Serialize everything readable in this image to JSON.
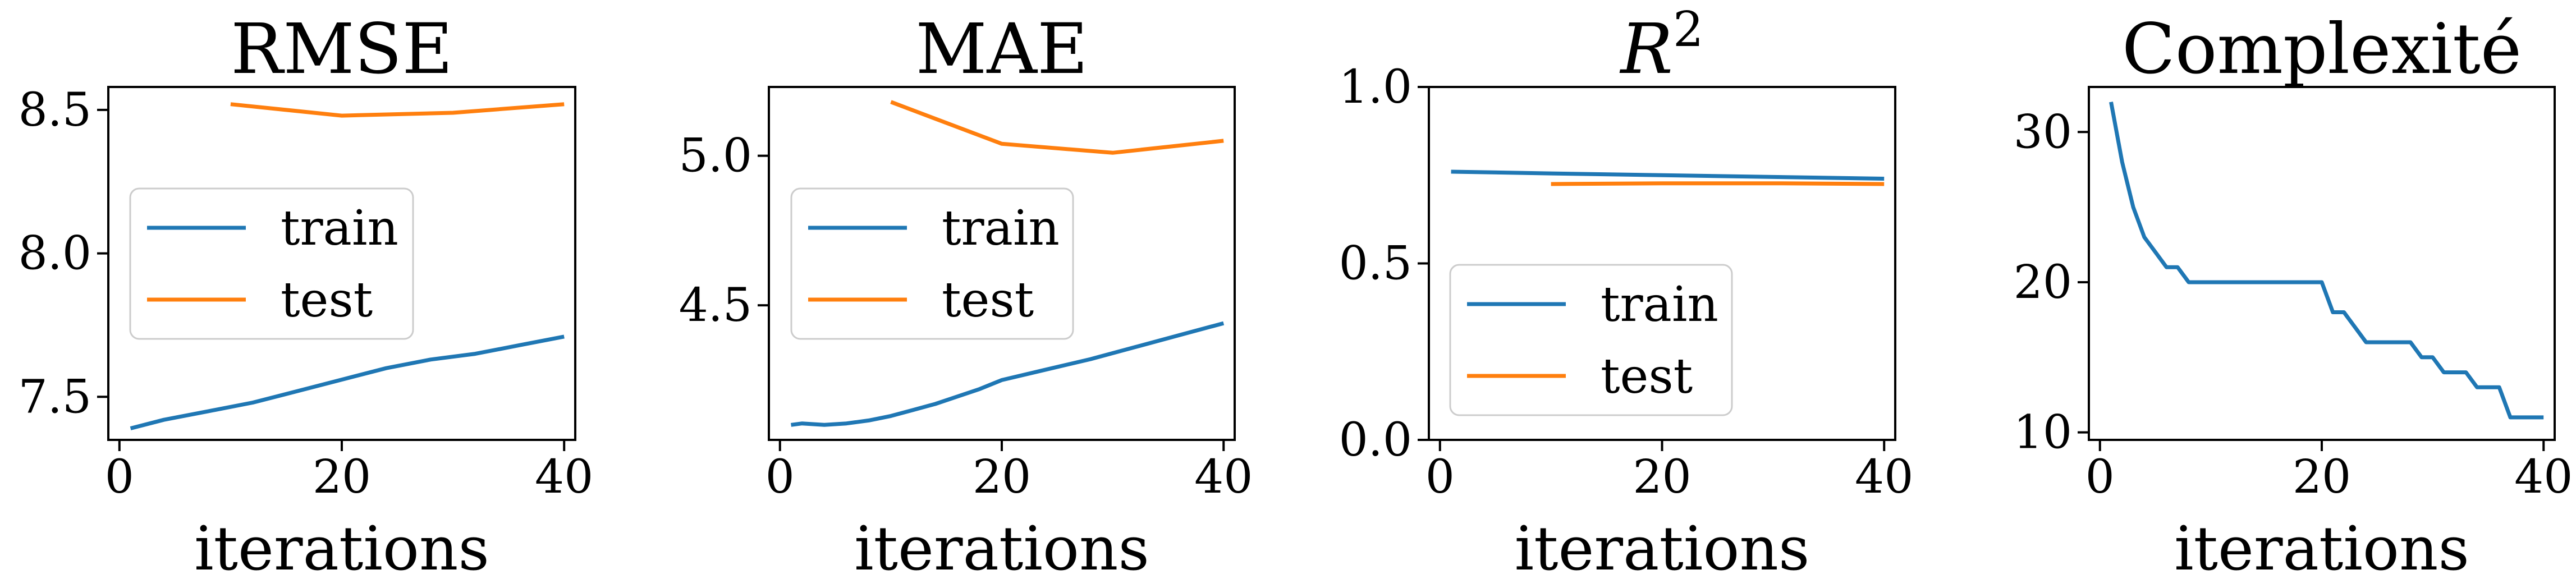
{
  "chart_data": [
    {
      "type": "line",
      "title": "RMSE",
      "xlabel": "iterations",
      "ylabel": "",
      "xlim": [
        -1,
        41
      ],
      "ylim": [
        7.35,
        8.58
      ],
      "xticks": [
        0,
        20,
        40
      ],
      "yticks": [
        7.5,
        8.0,
        8.5
      ],
      "ytick_labels": [
        "7.5",
        "8.0",
        "8.5"
      ],
      "legend": {
        "position": "center-left"
      },
      "colors": {
        "train": "#1f77b4",
        "test": "#ff7f0e"
      },
      "series": [
        {
          "name": "train",
          "color": "#1f77b4",
          "x": [
            1,
            4,
            8,
            12,
            16,
            20,
            24,
            28,
            32,
            36,
            40
          ],
          "y": [
            7.39,
            7.42,
            7.45,
            7.48,
            7.52,
            7.56,
            7.6,
            7.63,
            7.65,
            7.68,
            7.71
          ]
        },
        {
          "name": "test",
          "color": "#ff7f0e",
          "x": [
            10,
            20,
            30,
            40
          ],
          "y": [
            8.52,
            8.48,
            8.49,
            8.52
          ]
        }
      ]
    },
    {
      "type": "line",
      "title": "MAE",
      "xlabel": "iterations",
      "ylabel": "",
      "xlim": [
        -1,
        41
      ],
      "ylim": [
        4.05,
        5.23
      ],
      "xticks": [
        0,
        20,
        40
      ],
      "yticks": [
        4.5,
        5.0
      ],
      "ytick_labels": [
        "4.5",
        "5.0"
      ],
      "legend": {
        "position": "center-left"
      },
      "colors": {
        "train": "#1f77b4",
        "test": "#ff7f0e"
      },
      "series": [
        {
          "name": "train",
          "color": "#1f77b4",
          "x": [
            1,
            2,
            4,
            6,
            8,
            10,
            12,
            14,
            16,
            18,
            20,
            24,
            28,
            32,
            36,
            40
          ],
          "y": [
            4.1,
            4.105,
            4.1,
            4.105,
            4.115,
            4.13,
            4.15,
            4.17,
            4.195,
            4.22,
            4.25,
            4.285,
            4.32,
            4.36,
            4.4,
            4.44
          ]
        },
        {
          "name": "test",
          "color": "#ff7f0e",
          "x": [
            10,
            20,
            30,
            40
          ],
          "y": [
            5.18,
            5.04,
            5.01,
            5.05
          ]
        }
      ]
    },
    {
      "type": "line",
      "title": "R",
      "title_superscript": "2",
      "xlabel": "iterations",
      "ylabel": "",
      "xlim": [
        -1,
        41
      ],
      "ylim": [
        0.0,
        1.0
      ],
      "xticks": [
        0,
        20,
        40
      ],
      "yticks": [
        0.0,
        0.5,
        1.0
      ],
      "ytick_labels": [
        "0.0",
        "0.5",
        "1.0"
      ],
      "legend": {
        "position": "lower-left"
      },
      "colors": {
        "train": "#1f77b4",
        "test": "#ff7f0e"
      },
      "series": [
        {
          "name": "train",
          "color": "#1f77b4",
          "x": [
            1,
            10,
            20,
            30,
            40
          ],
          "y": [
            0.76,
            0.755,
            0.75,
            0.745,
            0.74
          ]
        },
        {
          "name": "test",
          "color": "#ff7f0e",
          "x": [
            10,
            20,
            30,
            40
          ],
          "y": [
            0.725,
            0.727,
            0.727,
            0.725
          ]
        }
      ]
    },
    {
      "type": "line",
      "title": "Complexité",
      "xlabel": "iterations",
      "ylabel": "",
      "xlim": [
        -1,
        41
      ],
      "ylim": [
        9.5,
        33.0
      ],
      "xticks": [
        0,
        20,
        40
      ],
      "yticks": [
        10,
        20,
        30
      ],
      "ytick_labels": [
        "10",
        "20",
        "30"
      ],
      "colors": {
        "line": "#1f77b4"
      },
      "series": [
        {
          "name": "",
          "color": "#1f77b4",
          "x": [
            1,
            2,
            3,
            4,
            5,
            6,
            7,
            8,
            9,
            10,
            11,
            12,
            13,
            14,
            15,
            16,
            17,
            18,
            19,
            20,
            21,
            22,
            23,
            24,
            25,
            26,
            27,
            28,
            29,
            30,
            31,
            32,
            33,
            34,
            35,
            36,
            37,
            38,
            39,
            40
          ],
          "y": [
            32,
            28,
            25,
            23,
            22,
            21,
            21,
            20,
            20,
            20,
            20,
            20,
            20,
            20,
            20,
            20,
            20,
            20,
            20,
            20,
            18,
            18,
            17,
            16,
            16,
            16,
            16,
            16,
            15,
            15,
            14,
            14,
            14,
            13,
            13,
            13,
            11,
            11,
            11,
            11
          ]
        }
      ]
    }
  ]
}
